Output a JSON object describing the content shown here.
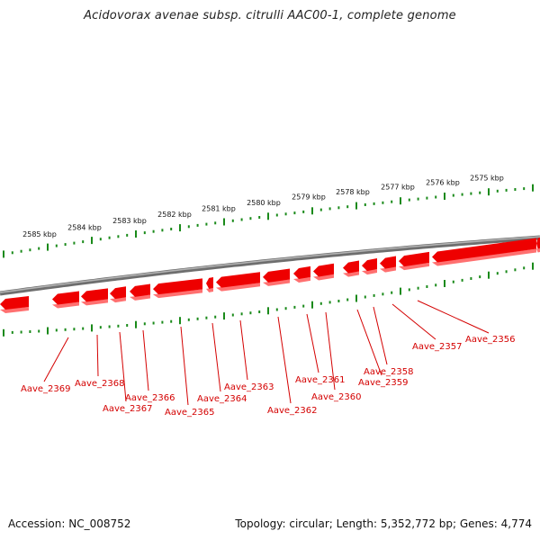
{
  "title": "Acidovorax avenae subsp. citrulli AAC00-1, complete genome",
  "footer": {
    "accession": "Accession: NC_008752",
    "summary": "Topology: circular; Length: 5,352,772 bp; Genes: 4,774"
  },
  "colors": {
    "gene_fill": "#ee0000",
    "gene_side": "#ff7070",
    "tick": "#1a8a1a",
    "backbone": "#888888",
    "label": "#d40000"
  },
  "scale_labels": [
    "2585 kbp",
    "2584 kbp",
    "2583 kbp",
    "2582 kbp",
    "2581 kbp",
    "2580 kbp",
    "2579 kbp",
    "2578 kbp",
    "2577 kbp",
    "2576 kbp",
    "2575 kbp"
  ],
  "genes": [
    {
      "name": "Aave_2356",
      "direction": "reverse"
    },
    {
      "name": "Aave_2357",
      "direction": "reverse"
    },
    {
      "name": "Aave_2358",
      "direction": "reverse"
    },
    {
      "name": "Aave_2359",
      "direction": "reverse"
    },
    {
      "name": "Aave_2360",
      "direction": "reverse"
    },
    {
      "name": "Aave_2361",
      "direction": "reverse"
    },
    {
      "name": "Aave_2362",
      "direction": "reverse"
    },
    {
      "name": "Aave_2363",
      "direction": "reverse"
    },
    {
      "name": "Aave_2364",
      "direction": "reverse"
    },
    {
      "name": "Aave_2365",
      "direction": "reverse"
    },
    {
      "name": "Aave_2366",
      "direction": "reverse"
    },
    {
      "name": "Aave_2367",
      "direction": "reverse"
    },
    {
      "name": "Aave_2368",
      "direction": "reverse"
    },
    {
      "name": "Aave_2369",
      "direction": "reverse"
    }
  ]
}
